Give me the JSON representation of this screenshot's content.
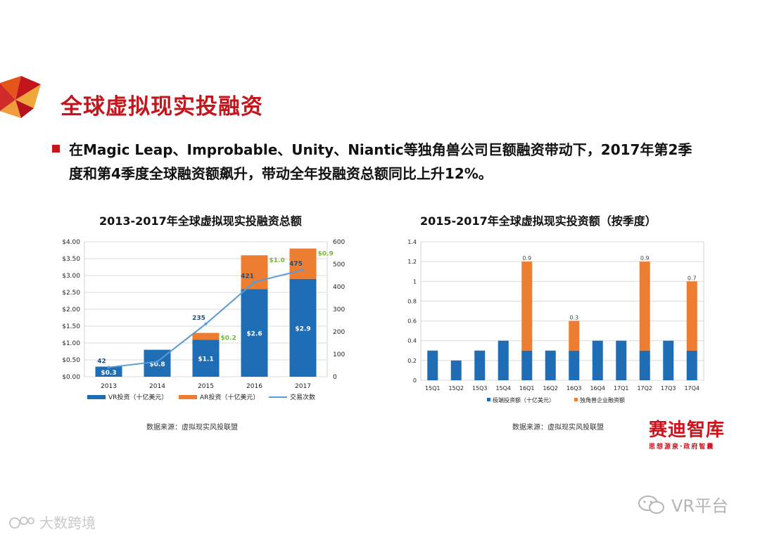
{
  "slide": {
    "title": "全球虚拟现实投融资",
    "bullet": "在Magic Leap、Improbable、Unity、Niantic等独角兽公司巨额融资带动下，2017年第2季度和第4季度全球融资额飙升，带动全年投融资总额同比上升12%。"
  },
  "chart_left": {
    "title": "2013-2017年全球虚拟现实投融资总额",
    "source": "数据来源：虚拟现实风投联盟",
    "legend": [
      "VR投资（十亿美元）",
      "AR投资（十亿美元）",
      "交易次数"
    ],
    "colors": {
      "vr": "#1f6eb5",
      "ar": "#ed7d31",
      "deals": "#5b9bd5",
      "ar_label": "#7cb342"
    }
  },
  "chart_right": {
    "title": "2015-2017年全球虚拟现实投资额（按季度）",
    "source": "数据来源：虚拟现实风投联盟",
    "legend": [
      "极端投资额（十亿美元）",
      "独角兽企业融资额"
    ],
    "colors": {
      "base": "#1f6eb5",
      "unicorn": "#ed7d31"
    }
  },
  "chart_data": [
    {
      "type": "bar",
      "categories": [
        "2013",
        "2014",
        "2015",
        "2016",
        "2017"
      ],
      "series": [
        {
          "name": "VR投资（十亿美元）",
          "values": [
            0.3,
            0.8,
            1.1,
            2.6,
            2.9
          ],
          "labels": [
            "$0.3",
            "$0.8",
            "$1.1",
            "$2.6",
            "$2.9"
          ]
        },
        {
          "name": "AR投资（十亿美元）",
          "values": [
            0,
            0,
            0.2,
            1.0,
            0.9
          ],
          "labels": [
            "",
            "",
            "$0.2",
            "$1.0",
            "$0.9"
          ]
        },
        {
          "name": "交易次数",
          "values": [
            42,
            67,
            235,
            421,
            475
          ],
          "labels": [
            "42",
            "",
            "235",
            "421",
            "475"
          ]
        }
      ],
      "y_left": {
        "ticks": [
          "$0.00",
          "$0.50",
          "$1.00",
          "$1.50",
          "$2.00",
          "$2.50",
          "$3.00",
          "$3.50",
          "$4.00"
        ],
        "ylim": [
          0,
          4
        ]
      },
      "y_right": {
        "ticks": [
          "0",
          "100",
          "200",
          "300",
          "400",
          "500",
          "600"
        ],
        "ylim": [
          0,
          600
        ]
      },
      "grid": true
    },
    {
      "type": "bar",
      "categories": [
        "15Q1",
        "15Q2",
        "15Q3",
        "15Q4",
        "16Q1",
        "16Q2",
        "16Q3",
        "16Q4",
        "17Q1",
        "17Q2",
        "17Q3",
        "17Q4"
      ],
      "series": [
        {
          "name": "极端投资额（十亿美元）",
          "values": [
            0.3,
            0.2,
            0.3,
            0.4,
            0.3,
            0.3,
            0.3,
            0.4,
            0.4,
            0.3,
            0.4,
            0.3
          ]
        },
        {
          "name": "独角兽企业融资额",
          "values": [
            0,
            0,
            0,
            0,
            0.9,
            0,
            0.3,
            0,
            0,
            0.9,
            0,
            0.7
          ],
          "labels": [
            "",
            "",
            "",
            "",
            "0.9",
            "",
            "0.3",
            "",
            "",
            "0.9",
            "",
            "0.7"
          ]
        }
      ],
      "y": {
        "ticks": [
          "0",
          "0.2",
          "0.4",
          "0.6",
          "0.8",
          "1",
          "1.2",
          "1.4"
        ],
        "ylim": [
          0,
          1.4
        ]
      },
      "grid": true
    }
  ],
  "brand": {
    "name": "赛迪智库",
    "tagline": "思想源泉·政府智囊"
  },
  "watermarks": {
    "left": "大数跨境",
    "right": "VR平台"
  }
}
